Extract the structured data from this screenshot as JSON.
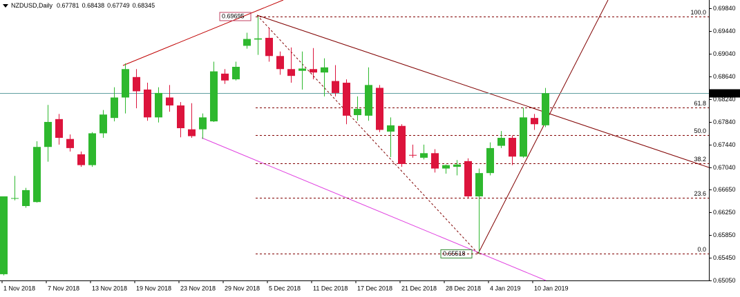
{
  "chart_data": {
    "type": "candlestick",
    "title": "NZDUSD,Daily",
    "categories": [
      "1 Nov 2018",
      null,
      null,
      null,
      "7 Nov 2018",
      null,
      null,
      null,
      "13 Nov 2018",
      null,
      null,
      null,
      "19 Nov 2018",
      null,
      null,
      null,
      "23 Nov 2018",
      null,
      null,
      null,
      "29 Nov 2018",
      null,
      null,
      null,
      "5 Dec 2018",
      null,
      null,
      null,
      "11 Dec 2018",
      null,
      null,
      null,
      "17 Dec 2018",
      null,
      null,
      null,
      "21 Dec 2018",
      null,
      null,
      null,
      "28 Dec 2018",
      null,
      null,
      null,
      "4 Jan 2019",
      null,
      null,
      null,
      "10 Jan 2019",
      null
    ],
    "open": [
      0.6516,
      0.6649,
      0.6636,
      0.6643,
      0.674,
      0.6789,
      0.6754,
      0.6727,
      0.6708,
      0.6764,
      0.6791,
      0.6827,
      0.6863,
      0.6841,
      0.6792,
      0.6827,
      0.6813,
      0.6771,
      0.6771,
      0.6785,
      0.6869,
      0.6859,
      0.6918,
      0.6929,
      0.6932,
      0.69,
      0.6877,
      0.6874,
      0.6877,
      0.6871,
      0.6856,
      0.6853,
      0.6796,
      0.6795,
      0.6844,
      0.6767,
      0.6777,
      0.6726,
      0.6721,
      0.6729,
      0.6702,
      0.6705,
      0.6715,
      0.6653,
      0.6694,
      0.6742,
      0.6756,
      0.6723,
      0.6791,
      0.67781
    ],
    "high": [
      0.6653,
      0.6689,
      0.6668,
      0.675,
      0.6814,
      0.6798,
      0.6762,
      0.6732,
      0.6766,
      0.6805,
      0.6845,
      0.6887,
      0.6877,
      0.6853,
      0.6845,
      0.6849,
      0.6819,
      0.6817,
      0.6799,
      0.689,
      0.6877,
      0.689,
      0.6941,
      0.69695,
      0.695,
      0.6908,
      0.6915,
      0.6908,
      0.6914,
      0.6896,
      0.6884,
      0.6859,
      0.6829,
      0.688,
      0.6849,
      0.6792,
      0.678,
      0.6744,
      0.6744,
      0.6736,
      0.6709,
      0.6717,
      0.672,
      0.6702,
      0.6748,
      0.6768,
      0.676,
      0.6809,
      0.6798,
      0.68438
    ],
    "low": [
      0.6514,
      0.6646,
      0.6633,
      0.6642,
      0.6714,
      0.6744,
      0.6732,
      0.6705,
      0.6705,
      0.6756,
      0.6785,
      0.6799,
      0.6808,
      0.6786,
      0.6783,
      0.6802,
      0.6757,
      0.6756,
      0.6754,
      0.6784,
      0.6851,
      0.6857,
      0.6913,
      0.6902,
      0.689,
      0.6867,
      0.6853,
      0.6841,
      0.6859,
      0.6829,
      0.6829,
      0.678,
      0.6786,
      0.6786,
      0.6766,
      0.6722,
      0.6705,
      0.6721,
      0.6718,
      0.6695,
      0.6693,
      0.669,
      0.665,
      0.65518,
      0.669,
      0.6738,
      0.6708,
      0.6721,
      0.677,
      0.67749
    ],
    "close": [
      0.6653,
      0.665,
      0.6664,
      0.674,
      0.6784,
      0.6756,
      0.6738,
      0.6708,
      0.6764,
      0.6797,
      0.6827,
      0.6877,
      0.6838,
      0.6792,
      0.6835,
      0.6813,
      0.6773,
      0.6759,
      0.6792,
      0.6873,
      0.6857,
      0.6881,
      0.693,
      0.6931,
      0.69,
      0.6877,
      0.6865,
      0.6878,
      0.6871,
      0.688,
      0.6835,
      0.6795,
      0.6807,
      0.6849,
      0.677,
      0.6778,
      0.671,
      0.6725,
      0.6729,
      0.6702,
      0.6708,
      0.6709,
      0.6653,
      0.6694,
      0.6738,
      0.6756,
      0.6723,
      0.6792,
      0.678,
      0.68345
    ],
    "up_color": "#2eb82e",
    "down_color": "#dc143c",
    "ylim": [
      0.6505,
      0.69986
    ],
    "yticks": [
      {
        "value": 0.6984,
        "label": "0.69840"
      },
      {
        "value": 0.6944,
        "label": "0.69440"
      },
      {
        "value": 0.6904,
        "label": "0.69040"
      },
      {
        "value": 0.6864,
        "label": "0.68640"
      },
      {
        "value": 0.6824,
        "label": "0.68240"
      },
      {
        "value": 0.6784,
        "label": "0.67840"
      },
      {
        "value": 0.6744,
        "label": "0.67440"
      },
      {
        "value": 0.6704,
        "label": "0.67040"
      },
      {
        "value": 0.6665,
        "label": "0.66650"
      },
      {
        "value": 0.6625,
        "label": "0.66250"
      },
      {
        "value": 0.6585,
        "label": "0.65850"
      },
      {
        "value": 0.6545,
        "label": "0.65450"
      },
      {
        "value": 0.6505,
        "label": "0.65050"
      }
    ],
    "fib": {
      "high": 0.69695,
      "low": 0.65518,
      "levels": [
        {
          "value": 100,
          "label": "100.0"
        },
        61.8,
        {
          "value": 50,
          "label": "50.0"
        },
        38.2,
        23.6,
        {
          "value": 0,
          "label": "0.0"
        }
      ]
    }
  }
}
